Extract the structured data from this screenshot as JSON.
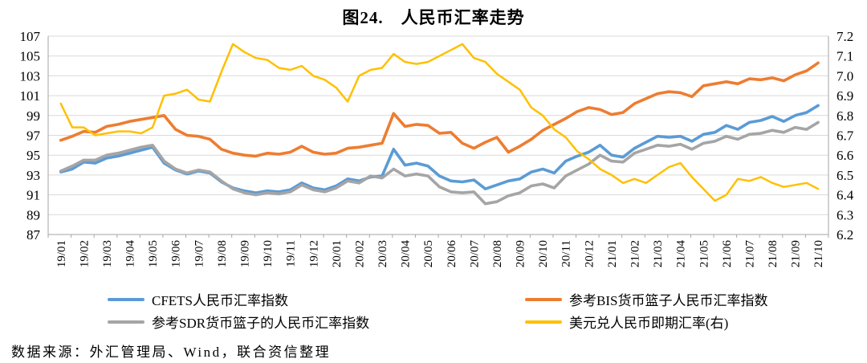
{
  "title": "图24.　人民币汇率走势",
  "source": "数据来源：外汇管理局、Wind，联合资信整理",
  "colors": {
    "cfets_blue": "#5B9BD5",
    "bis_orange": "#ED7D31",
    "sdr_gray": "#A5A5A5",
    "usd_yellow": "#FFC000",
    "gridline": "#D9D9D9",
    "axis": "#A6A6A6"
  },
  "chart_data": {
    "type": "line",
    "title": "图24.　人民币汇率走势",
    "x_start_month": "19/01",
    "x_end_month": "21/10",
    "points_per_month": 2,
    "x_tick_labels": [
      "19/01",
      "19/02",
      "19/03",
      "19/04",
      "19/05",
      "19/06",
      "19/07",
      "19/08",
      "19/09",
      "19/10",
      "19/11",
      "19/12",
      "20/01",
      "20/02",
      "20/03",
      "20/04",
      "20/05",
      "20/06",
      "20/07",
      "20/08",
      "20/09",
      "20/10",
      "20/11",
      "20/12",
      "21/01",
      "21/02",
      "21/03",
      "21/04",
      "21/05",
      "21/06",
      "21/07",
      "21/08",
      "21/09",
      "21/10"
    ],
    "left_range": [
      87,
      107
    ],
    "right_range": [
      6.2,
      7.2
    ],
    "left_ticks": [
      "107",
      "105",
      "103",
      "101",
      "99",
      "97",
      "95",
      "93",
      "91",
      "89",
      "87"
    ],
    "right_ticks": [
      "7.2",
      "7.1",
      "7.0",
      "6.9",
      "6.8",
      "6.7",
      "6.6",
      "6.5",
      "6.4",
      "6.3",
      "6.2"
    ],
    "grid": true,
    "legend_position": "bottom",
    "series": [
      {
        "name": "CFETS人民币汇率指数",
        "color": "#5B9BD5",
        "axis": "left",
        "values": [
          93.3,
          93.6,
          94.3,
          94.2,
          94.7,
          94.9,
          95.2,
          95.5,
          95.8,
          94.2,
          93.5,
          93.1,
          93.4,
          93.2,
          92.3,
          91.7,
          91.4,
          91.2,
          91.4,
          91.3,
          91.5,
          92.2,
          91.7,
          91.5,
          91.9,
          92.6,
          92.4,
          92.8,
          92.9,
          95.6,
          94.0,
          94.2,
          93.9,
          92.9,
          92.4,
          92.3,
          92.5,
          91.6,
          92.0,
          92.4,
          92.6,
          93.3,
          93.6,
          93.2,
          94.4,
          94.9,
          95.3,
          96.0,
          95.0,
          94.8,
          95.7,
          96.3,
          96.9,
          96.8,
          96.9,
          96.4,
          97.1,
          97.3,
          98.0,
          97.6,
          98.3,
          98.5,
          98.9,
          98.4,
          99.0,
          99.3,
          100.0
        ]
      },
      {
        "name": "参考BIS货币篮子人民币汇率指数",
        "color": "#ED7D31",
        "axis": "left",
        "values": [
          96.5,
          96.9,
          97.4,
          97.3,
          97.9,
          98.1,
          98.4,
          98.6,
          98.8,
          99.0,
          97.6,
          97.0,
          96.9,
          96.6,
          95.6,
          95.2,
          95.0,
          94.9,
          95.2,
          95.1,
          95.3,
          95.9,
          95.3,
          95.1,
          95.2,
          95.7,
          95.8,
          96.0,
          96.2,
          99.2,
          97.9,
          98.1,
          98.0,
          97.2,
          97.3,
          96.2,
          95.7,
          96.3,
          96.8,
          95.3,
          95.9,
          96.6,
          97.5,
          98.1,
          98.7,
          99.4,
          99.8,
          99.6,
          99.1,
          99.3,
          100.2,
          100.7,
          101.2,
          101.4,
          101.3,
          100.9,
          102.0,
          102.2,
          102.4,
          102.2,
          102.7,
          102.6,
          102.8,
          102.5,
          103.1,
          103.5,
          104.3
        ]
      },
      {
        "name": "参考SDR货币篮子的人民币汇率指数",
        "color": "#A5A5A5",
        "axis": "left",
        "values": [
          93.4,
          93.9,
          94.5,
          94.5,
          95.0,
          95.2,
          95.5,
          95.8,
          96.0,
          94.4,
          93.6,
          93.2,
          93.5,
          93.3,
          92.4,
          91.6,
          91.2,
          91.0,
          91.2,
          91.1,
          91.3,
          92.0,
          91.5,
          91.3,
          91.7,
          92.4,
          92.2,
          92.9,
          92.7,
          93.6,
          92.9,
          93.1,
          92.9,
          91.8,
          91.3,
          91.2,
          91.3,
          90.1,
          90.3,
          90.9,
          91.2,
          91.9,
          92.1,
          91.7,
          92.9,
          93.5,
          94.1,
          95.0,
          94.4,
          94.3,
          95.2,
          95.6,
          96.0,
          95.9,
          96.1,
          95.6,
          96.2,
          96.4,
          96.9,
          96.6,
          97.1,
          97.2,
          97.5,
          97.3,
          97.8,
          97.6,
          98.3
        ]
      },
      {
        "name": "美元兑人民币即期汇率(右)",
        "color": "#FFC000",
        "axis": "right",
        "values": [
          6.86,
          6.74,
          6.74,
          6.7,
          6.71,
          6.72,
          6.72,
          6.71,
          6.74,
          6.9,
          6.91,
          6.93,
          6.88,
          6.87,
          7.02,
          7.16,
          7.12,
          7.09,
          7.08,
          7.04,
          7.03,
          7.05,
          7.0,
          6.98,
          6.94,
          6.87,
          7.0,
          7.03,
          7.04,
          7.11,
          7.07,
          7.06,
          7.07,
          7.1,
          7.13,
          7.16,
          7.09,
          7.07,
          7.01,
          6.97,
          6.93,
          6.84,
          6.8,
          6.73,
          6.69,
          6.62,
          6.58,
          6.53,
          6.5,
          6.46,
          6.48,
          6.46,
          6.5,
          6.54,
          6.56,
          6.49,
          6.43,
          6.37,
          6.4,
          6.48,
          6.47,
          6.49,
          6.46,
          6.44,
          6.45,
          6.46,
          6.43
        ]
      }
    ]
  }
}
